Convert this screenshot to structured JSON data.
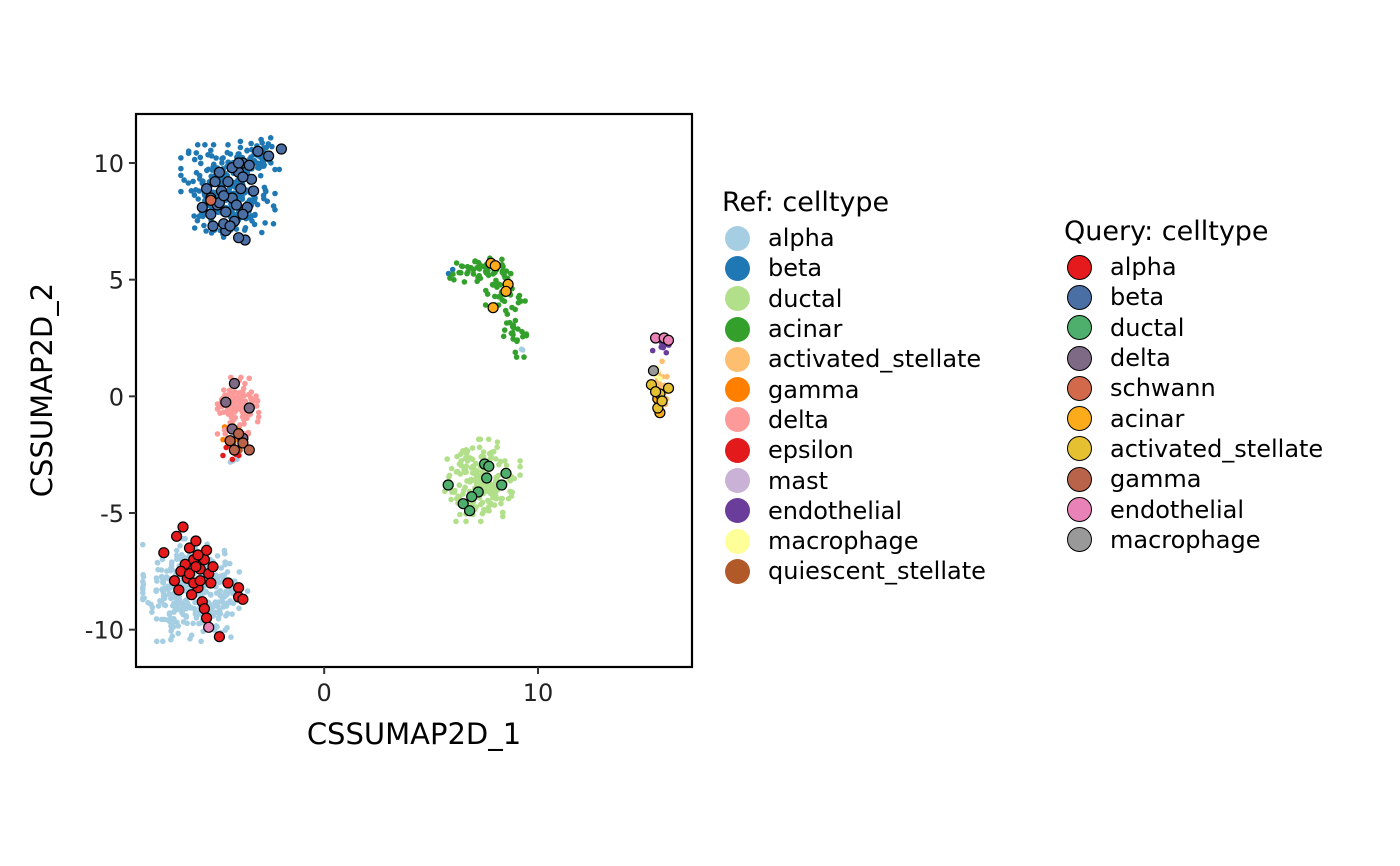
{
  "chart_data": {
    "type": "scatter",
    "title": "",
    "xlabel": "CSSUMAP2D_1",
    "ylabel": "CSSUMAP2D_2",
    "xlim": [
      -8.8,
      17.2
    ],
    "ylim": [
      -11.6,
      12.1
    ],
    "xticks": [
      0,
      10
    ],
    "yticks": [
      10,
      5,
      0,
      -5,
      -10
    ],
    "xtick_labels": [
      "0",
      "10"
    ],
    "ytick_labels": [
      "10",
      "5",
      "0",
      "-5",
      "-10"
    ],
    "grid": false,
    "legend_placement": "right",
    "ref": {
      "legend_title": "Ref: celltype",
      "series": [
        {
          "name": "alpha",
          "color": "#A6CEE3",
          "clusters": [
            {
              "cx": -6.5,
              "cy": -8.3,
              "sx": 0.9,
              "sy": 1.0,
              "n": 300
            },
            {
              "cx": -4.7,
              "cy": -8.6,
              "sx": 0.6,
              "sy": 0.8,
              "n": 70
            },
            {
              "cx": 9.2,
              "cy": 2.0,
              "sx": 0.1,
              "sy": 0.1,
              "n": 2
            },
            {
              "cx": -4.2,
              "cy": -2.7,
              "sx": 0.15,
              "sy": 0.15,
              "n": 3
            }
          ]
        },
        {
          "name": "beta",
          "color": "#1F78B4",
          "clusters": [
            {
              "cx": -4.5,
              "cy": 8.8,
              "sx": 1.0,
              "sy": 0.9,
              "n": 260
            },
            {
              "cx": -3.2,
              "cy": 10.2,
              "sx": 0.5,
              "sy": 0.4,
              "n": 60
            },
            {
              "cx": 6.0,
              "cy": 5.3,
              "sx": 0.15,
              "sy": 0.1,
              "n": 2
            }
          ]
        },
        {
          "name": "ductal",
          "color": "#B2DF8A",
          "clusters": [
            {
              "cx": 7.4,
              "cy": -3.6,
              "sx": 0.8,
              "sy": 0.8,
              "n": 190
            }
          ]
        },
        {
          "name": "acinar",
          "color": "#33A02C",
          "clusters": [
            {
              "cx": 7.2,
              "cy": 5.4,
              "sx": 0.6,
              "sy": 0.25,
              "n": 40
            },
            {
              "cx": 8.2,
              "cy": 4.6,
              "sx": 0.35,
              "sy": 0.6,
              "n": 40
            },
            {
              "cx": 8.9,
              "cy": 3.0,
              "sx": 0.25,
              "sy": 0.6,
              "n": 30
            }
          ]
        },
        {
          "name": "activated_stellate",
          "color": "#FDBF6F",
          "clusters": [
            {
              "cx": 15.7,
              "cy": 0.4,
              "sx": 0.15,
              "sy": 0.5,
              "n": 28
            }
          ]
        },
        {
          "name": "gamma",
          "color": "#FF7F00",
          "clusters": [
            {
              "cx": -4.3,
              "cy": -1.7,
              "sx": 0.3,
              "sy": 0.35,
              "n": 14
            }
          ]
        },
        {
          "name": "delta",
          "color": "#FB9A99",
          "clusters": [
            {
              "cx": -4.0,
              "cy": -0.4,
              "sx": 0.45,
              "sy": 0.55,
              "n": 110
            }
          ]
        },
        {
          "name": "epsilon",
          "color": "#E31A1C",
          "clusters": [
            {
              "cx": -4.3,
              "cy": -2.5,
              "sx": 0.2,
              "sy": 0.15,
              "n": 5
            },
            {
              "cx": -5.3,
              "cy": 8.6,
              "sx": 0.15,
              "sy": 0.15,
              "n": 2
            }
          ]
        },
        {
          "name": "mast",
          "color": "#CAB2D6",
          "clusters": []
        },
        {
          "name": "endothelial",
          "color": "#6A3D9A",
          "clusters": [
            {
              "cx": 15.8,
              "cy": 2.3,
              "sx": 0.2,
              "sy": 0.2,
              "n": 10
            }
          ]
        },
        {
          "name": "macrophage",
          "color": "#FFFF99",
          "clusters": [
            {
              "cx": 15.6,
              "cy": 0.9,
              "sx": 0.1,
              "sy": 0.2,
              "n": 4
            }
          ]
        },
        {
          "name": "quiescent_stellate",
          "color": "#B15928",
          "clusters": [
            {
              "cx": -4.0,
              "cy": -2.0,
              "sx": 0.3,
              "sy": 0.25,
              "n": 6
            }
          ]
        }
      ]
    },
    "query": {
      "legend_title": "Query: celltype",
      "series": [
        {
          "name": "alpha",
          "color": "#E41A1C",
          "points": [
            [
              -7.5,
              -6.7
            ],
            [
              -6.6,
              -5.6
            ],
            [
              -6.9,
              -6.0
            ],
            [
              -6.3,
              -6.5
            ],
            [
              -6.1,
              -7.0
            ],
            [
              -5.8,
              -7.4
            ],
            [
              -6.4,
              -7.8
            ],
            [
              -5.9,
              -8.2
            ],
            [
              -5.6,
              -7.0
            ],
            [
              -5.4,
              -7.6
            ],
            [
              -6.2,
              -8.5
            ],
            [
              -5.7,
              -8.8
            ],
            [
              -5.6,
              -9.1
            ],
            [
              -5.3,
              -8.0
            ],
            [
              -6.5,
              -7.2
            ],
            [
              -6.0,
              -6.2
            ],
            [
              -5.5,
              -6.6
            ],
            [
              -6.7,
              -7.5
            ],
            [
              -5.9,
              -6.8
            ],
            [
              -6.1,
              -8.0
            ],
            [
              -5.2,
              -7.3
            ],
            [
              -4.5,
              -8.0
            ],
            [
              -4.0,
              -8.2
            ],
            [
              -4.0,
              -8.6
            ],
            [
              -3.8,
              -8.7
            ],
            [
              -7.0,
              -7.9
            ],
            [
              -6.8,
              -8.3
            ],
            [
              -5.5,
              -9.5
            ],
            [
              -4.9,
              -10.3
            ],
            [
              -6.3,
              -7.6
            ],
            [
              -5.8,
              -7.9
            ],
            [
              -6.0,
              -7.3
            ]
          ]
        },
        {
          "name": "beta",
          "color": "#4A6FA5",
          "points": [
            [
              -3.1,
              10.5
            ],
            [
              -2.0,
              10.6
            ],
            [
              -2.6,
              10.3
            ],
            [
              -3.8,
              10.0
            ],
            [
              -4.0,
              9.6
            ],
            [
              -4.5,
              9.2
            ],
            [
              -4.8,
              8.8
            ],
            [
              -5.3,
              8.5
            ],
            [
              -5.0,
              8.2
            ],
            [
              -4.6,
              7.9
            ],
            [
              -4.2,
              7.5
            ],
            [
              -4.6,
              7.1
            ],
            [
              -3.7,
              6.7
            ],
            [
              -4.0,
              6.8
            ],
            [
              -4.7,
              7.4
            ],
            [
              -5.3,
              7.8
            ],
            [
              -5.5,
              8.9
            ],
            [
              -4.9,
              9.6
            ],
            [
              -4.3,
              8.5
            ],
            [
              -3.9,
              8.9
            ],
            [
              -3.4,
              9.3
            ],
            [
              -3.6,
              8.1
            ],
            [
              -5.7,
              8.1
            ],
            [
              -4.3,
              9.8
            ],
            [
              -4.0,
              10.0
            ],
            [
              -3.3,
              8.8
            ],
            [
              -5.1,
              9.2
            ],
            [
              -3.8,
              7.8
            ],
            [
              -4.9,
              8.3
            ],
            [
              -4.4,
              7.3
            ],
            [
              -3.5,
              9.9
            ],
            [
              -5.2,
              7.3
            ],
            [
              -4.1,
              8.2
            ],
            [
              -3.8,
              9.4
            ],
            [
              -4.7,
              8.6
            ]
          ]
        },
        {
          "name": "ductal",
          "color": "#4DAF6B",
          "points": [
            [
              5.8,
              -3.8
            ],
            [
              6.5,
              -4.6
            ],
            [
              6.8,
              -4.9
            ],
            [
              7.6,
              -3.5
            ],
            [
              8.5,
              -3.3
            ],
            [
              7.5,
              -2.9
            ],
            [
              7.7,
              -3.0
            ],
            [
              7.2,
              -4.1
            ],
            [
              8.3,
              -3.8
            ],
            [
              6.9,
              -4.3
            ]
          ]
        },
        {
          "name": "delta",
          "color": "#7F6A86",
          "points": [
            [
              -4.2,
              0.55
            ],
            [
              -4.6,
              -0.25
            ],
            [
              -3.5,
              -0.5
            ],
            [
              -3.8,
              -1.8
            ],
            [
              -4.3,
              -1.4
            ]
          ]
        },
        {
          "name": "schwann",
          "color": "#D2694A",
          "points": [
            [
              -5.3,
              8.4
            ]
          ]
        },
        {
          "name": "acinar",
          "color": "#FCAC1A",
          "points": [
            [
              7.8,
              5.7
            ],
            [
              8.0,
              5.6
            ],
            [
              8.6,
              4.8
            ],
            [
              8.5,
              4.5
            ],
            [
              7.9,
              3.8
            ],
            [
              15.6,
              -0.1
            ],
            [
              15.7,
              -0.7
            ]
          ]
        },
        {
          "name": "activated_stellate",
          "color": "#E5C132",
          "points": [
            [
              15.3,
              0.5
            ],
            [
              16.1,
              0.35
            ],
            [
              15.7,
              0.1
            ],
            [
              15.5,
              0.2
            ],
            [
              15.6,
              -0.5
            ],
            [
              15.8,
              -0.2
            ]
          ]
        },
        {
          "name": "gamma",
          "color": "#B8634A",
          "points": [
            [
              -4.2,
              -2.3
            ],
            [
              -3.8,
              -2.0
            ],
            [
              -4.4,
              -1.9
            ],
            [
              -3.5,
              -2.3
            ],
            [
              -4.0,
              -1.6
            ]
          ]
        },
        {
          "name": "endothelial",
          "color": "#E982B7",
          "points": [
            [
              15.5,
              2.5
            ],
            [
              15.9,
              2.5
            ],
            [
              16.1,
              2.4
            ],
            [
              -5.4,
              -9.9
            ]
          ]
        },
        {
          "name": "macrophage",
          "color": "#999999",
          "points": [
            [
              15.4,
              1.1
            ]
          ]
        }
      ]
    }
  }
}
